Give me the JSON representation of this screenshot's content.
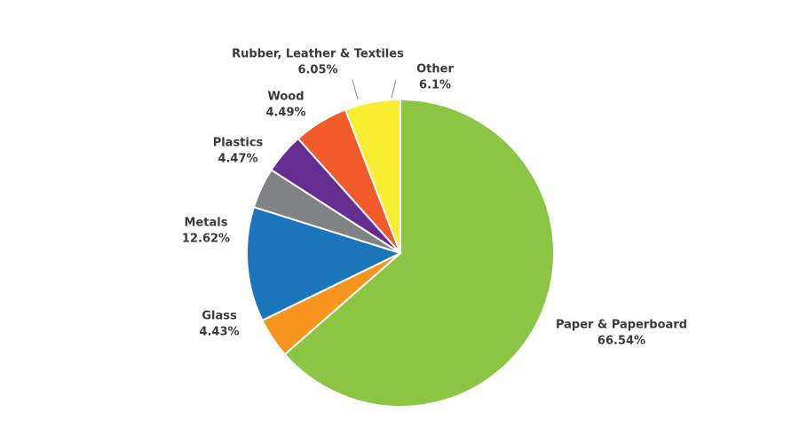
{
  "chart_data": {
    "type": "pie",
    "categories": [
      "Paper & Paperboard",
      "Glass",
      "Metals",
      "Plastics",
      "Wood",
      "Rubber, Leather & Textiles",
      "Other"
    ],
    "values": [
      66.54,
      4.43,
      12.62,
      4.47,
      4.49,
      6.05,
      6.1
    ],
    "value_labels": [
      "66.54%",
      "4.43%",
      "12.62%",
      "4.47%",
      "4.49%",
      "6.05%",
      "6.1%"
    ],
    "colors": [
      "#8cc443",
      "#f7941d",
      "#1a75bb",
      "#808285",
      "#662d91",
      "#f15a29",
      "#f9ed32"
    ]
  }
}
